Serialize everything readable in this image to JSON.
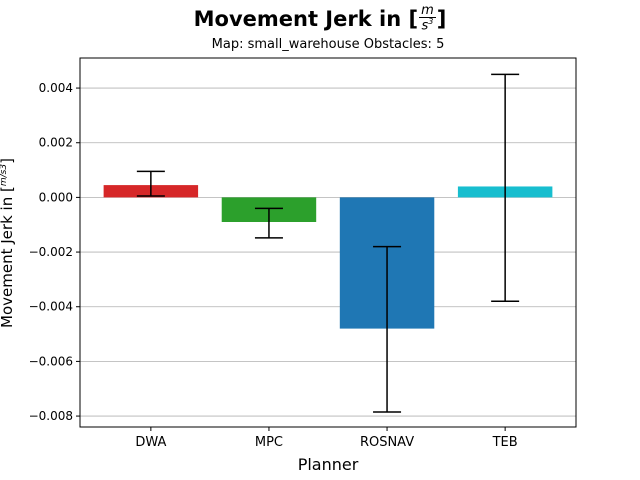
{
  "chart_data": {
    "type": "bar",
    "title": "Movement Jerk in",
    "title_unit": {
      "numerator": "m",
      "denominator": "s",
      "exponent": "3"
    },
    "subtitle": "Map: small_warehouse Obstacles: 5",
    "xlabel": "Planner",
    "ylabel": "Movement Jerk in [",
    "ylabel_unit": {
      "numerator": "m",
      "denominator": "s",
      "exponent": "3"
    },
    "categories": [
      "DWA",
      "MPC",
      "ROSNAV",
      "TEB"
    ],
    "values": [
      0.00045,
      -0.0009,
      -0.0048,
      0.0004
    ],
    "error_upper": [
      0.00095,
      -0.0004,
      -0.0018,
      0.0045
    ],
    "error_lower": [
      5e-05,
      -0.00148,
      -0.00785,
      -0.0038
    ],
    "colors": [
      "#d62728",
      "#2ca02c",
      "#1f77b4",
      "#17becf"
    ],
    "ylim": [
      -0.0084,
      0.0051
    ],
    "yticks": [
      -0.008,
      -0.006,
      -0.004,
      -0.002,
      0.0,
      0.002,
      0.004
    ],
    "ytick_labels": [
      "−0.008",
      "−0.006",
      "−0.004",
      "−0.002",
      "0.000",
      "0.002",
      "0.004"
    ],
    "grid": "horizontal"
  }
}
